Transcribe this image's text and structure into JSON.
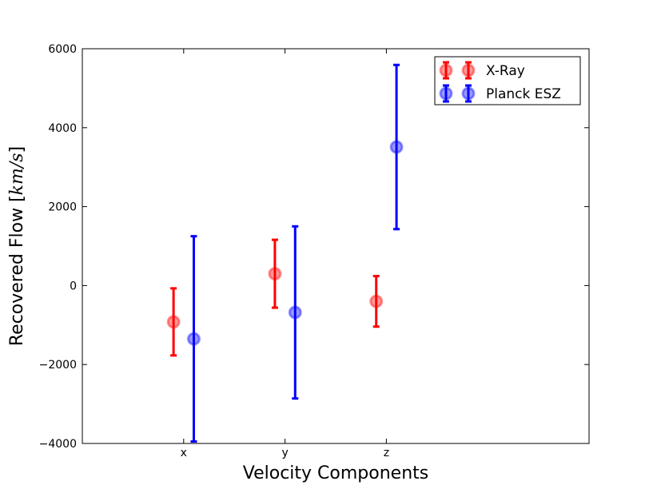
{
  "chart_data": {
    "type": "scatter",
    "categories": [
      "x",
      "y",
      "z"
    ],
    "xlabel": "Velocity Components",
    "ylabel": {
      "prefix": "Recovered Flow [",
      "unit": "km/s",
      "suffix": "]"
    },
    "ylim": [
      -4000,
      6000
    ],
    "yticks": [
      -4000,
      -2000,
      0,
      2000,
      4000,
      6000
    ],
    "grid": false,
    "legend_position": "top-right",
    "series": [
      {
        "name": "X-Ray",
        "color": "#ff0000",
        "values": [
          -920,
          300,
          -400
        ],
        "errors": [
          850,
          860,
          640
        ],
        "offset": -0.1
      },
      {
        "name": "Planck ESZ",
        "color": "#0000ff",
        "values": [
          -1350,
          -680,
          3510
        ],
        "errors": [
          2600,
          2180,
          2080
        ],
        "offset": 0.1
      }
    ]
  }
}
